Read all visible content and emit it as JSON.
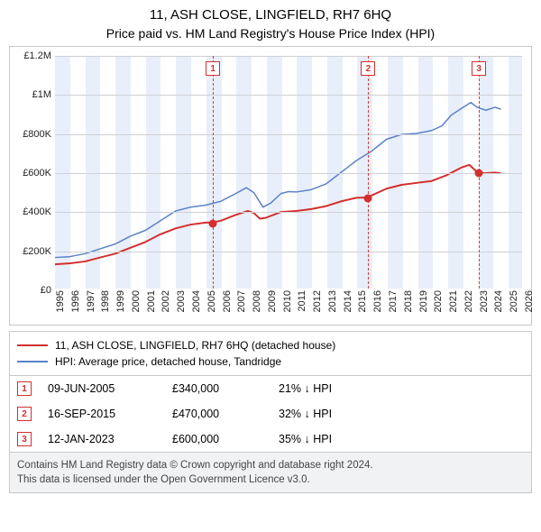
{
  "title": "11, ASH CLOSE, LINGFIELD, RH7 6HQ",
  "subtitle": "Price paid vs. HM Land Registry's House Price Index (HPI)",
  "chart": {
    "type": "line",
    "background_color": "#ffffff",
    "stripe_color": "#e8effa",
    "gridline_color": "#d0d0d4",
    "border_color": "#c7c7cc",
    "x": {
      "min": 1995,
      "max": 2026,
      "tick_start": 1995,
      "tick_end": 2026,
      "tick_step": 1,
      "tick_rotation": -90,
      "tick_fontsize": 11
    },
    "y": {
      "min": 0,
      "max": 1200000,
      "tick_step": 200000,
      "labels": [
        "£0",
        "£200K",
        "£400K",
        "£600K",
        "£800K",
        "£1M",
        "£1.2M"
      ],
      "tick_fontsize": 11
    },
    "series": {
      "price_paid": {
        "label": "11, ASH CLOSE, LINGFIELD, RH7 6HQ (detached house)",
        "color": "#d32f2f",
        "width": 2,
        "points": [
          [
            1995.0,
            125000
          ],
          [
            1996.0,
            130000
          ],
          [
            1997.0,
            140000
          ],
          [
            1998.0,
            160000
          ],
          [
            1999.0,
            180000
          ],
          [
            2000.0,
            210000
          ],
          [
            2001.0,
            240000
          ],
          [
            2002.0,
            280000
          ],
          [
            2003.0,
            310000
          ],
          [
            2004.0,
            330000
          ],
          [
            2005.0,
            340000
          ],
          [
            2005.44,
            340000
          ],
          [
            2006.0,
            350000
          ],
          [
            2007.0,
            380000
          ],
          [
            2007.8,
            400000
          ],
          [
            2008.2,
            390000
          ],
          [
            2008.6,
            360000
          ],
          [
            2009.0,
            365000
          ],
          [
            2010.0,
            395000
          ],
          [
            2011.0,
            400000
          ],
          [
            2012.0,
            410000
          ],
          [
            2013.0,
            425000
          ],
          [
            2014.0,
            450000
          ],
          [
            2015.0,
            468000
          ],
          [
            2015.71,
            470000
          ],
          [
            2016.0,
            480000
          ],
          [
            2017.0,
            515000
          ],
          [
            2018.0,
            535000
          ],
          [
            2019.0,
            545000
          ],
          [
            2020.0,
            555000
          ],
          [
            2021.0,
            585000
          ],
          [
            2022.0,
            625000
          ],
          [
            2022.5,
            638000
          ],
          [
            2023.03,
            600000
          ],
          [
            2023.5,
            595000
          ],
          [
            2024.2,
            598000
          ],
          [
            2024.6,
            595000
          ]
        ]
      },
      "hpi": {
        "label": "HPI: Average price, detached house, Tandridge",
        "color": "#5b82c7",
        "width": 1.5,
        "points": [
          [
            1995.0,
            160000
          ],
          [
            1996.0,
            165000
          ],
          [
            1997.0,
            180000
          ],
          [
            1998.0,
            205000
          ],
          [
            1999.0,
            230000
          ],
          [
            2000.0,
            270000
          ],
          [
            2001.0,
            300000
          ],
          [
            2002.0,
            350000
          ],
          [
            2003.0,
            400000
          ],
          [
            2004.0,
            420000
          ],
          [
            2005.0,
            430000
          ],
          [
            2006.0,
            450000
          ],
          [
            2007.0,
            490000
          ],
          [
            2007.7,
            520000
          ],
          [
            2008.2,
            495000
          ],
          [
            2008.8,
            420000
          ],
          [
            2009.3,
            440000
          ],
          [
            2010.0,
            490000
          ],
          [
            2010.5,
            500000
          ],
          [
            2011.0,
            498000
          ],
          [
            2012.0,
            510000
          ],
          [
            2013.0,
            540000
          ],
          [
            2014.0,
            600000
          ],
          [
            2015.0,
            660000
          ],
          [
            2016.0,
            708000
          ],
          [
            2017.0,
            770000
          ],
          [
            2018.0,
            795000
          ],
          [
            2019.0,
            800000
          ],
          [
            2020.0,
            815000
          ],
          [
            2020.7,
            840000
          ],
          [
            2021.3,
            895000
          ],
          [
            2022.0,
            930000
          ],
          [
            2022.6,
            960000
          ],
          [
            2023.0,
            935000
          ],
          [
            2023.6,
            920000
          ],
          [
            2024.2,
            935000
          ],
          [
            2024.6,
            925000
          ]
        ]
      }
    },
    "sale_markers": [
      {
        "n": "1",
        "x": 2005.44,
        "y": 340000
      },
      {
        "n": "2",
        "x": 2015.71,
        "y": 470000
      },
      {
        "n": "3",
        "x": 2023.03,
        "y": 600000
      }
    ]
  },
  "legend": {
    "rows": [
      {
        "color": "#d32f2f",
        "label": "11, ASH CLOSE, LINGFIELD, RH7 6HQ (detached house)"
      },
      {
        "color": "#5b82c7",
        "label": "HPI: Average price, detached house, Tandridge"
      }
    ]
  },
  "sales": [
    {
      "n": "1",
      "date": "09-JUN-2005",
      "price": "£340,000",
      "diff": "21% ↓ HPI"
    },
    {
      "n": "2",
      "date": "16-SEP-2015",
      "price": "£470,000",
      "diff": "32% ↓ HPI"
    },
    {
      "n": "3",
      "date": "12-JAN-2023",
      "price": "£600,000",
      "diff": "35% ↓ HPI"
    }
  ],
  "footer": {
    "line1": "Contains HM Land Registry data © Crown copyright and database right 2024.",
    "line2": "This data is licensed under the Open Government Licence v3.0."
  }
}
